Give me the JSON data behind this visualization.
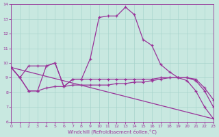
{
  "background_color": "#c8e8e0",
  "grid_color": "#a8d4cc",
  "line_color": "#993399",
  "xlabel": "Windchill (Refroidissement éolien,°C)",
  "xlim": [
    0,
    23
  ],
  "ylim": [
    6,
    14
  ],
  "xticks": [
    0,
    1,
    2,
    3,
    4,
    5,
    6,
    7,
    8,
    9,
    10,
    11,
    12,
    13,
    14,
    15,
    16,
    17,
    18,
    19,
    20,
    21,
    22,
    23
  ],
  "yticks": [
    6,
    7,
    8,
    9,
    10,
    11,
    12,
    13,
    14
  ],
  "series1_x": [
    0,
    1,
    2,
    3,
    4,
    5,
    6,
    7,
    8,
    9,
    10,
    11,
    12,
    13,
    14,
    15,
    16,
    17,
    18,
    19,
    20,
    21,
    22,
    23
  ],
  "series1_y": [
    9.7,
    9.0,
    8.1,
    8.1,
    9.8,
    10.0,
    8.4,
    8.9,
    8.9,
    10.3,
    13.1,
    13.2,
    13.2,
    13.8,
    13.3,
    11.6,
    11.2,
    9.9,
    9.4,
    9.0,
    8.8,
    8.1,
    7.0,
    6.2
  ],
  "series2_x": [
    0,
    1,
    2,
    3,
    4,
    5,
    6,
    7,
    8,
    9,
    10,
    11,
    12,
    13,
    14,
    15,
    16,
    17,
    18,
    19,
    20,
    21,
    22,
    23
  ],
  "series2_y": [
    9.7,
    9.0,
    9.8,
    9.8,
    9.8,
    10.0,
    8.4,
    8.9,
    8.9,
    8.9,
    8.9,
    8.9,
    8.9,
    8.9,
    8.9,
    8.9,
    8.9,
    9.0,
    9.0,
    9.0,
    9.0,
    8.8,
    8.1,
    7.0
  ],
  "series3_x": [
    0,
    1,
    2,
    3,
    4,
    5,
    6,
    7,
    8,
    9,
    10,
    11,
    12,
    13,
    14,
    15,
    16,
    17,
    18,
    19,
    20,
    21,
    22,
    23
  ],
  "series3_y": [
    9.7,
    9.0,
    8.1,
    8.1,
    8.3,
    8.4,
    8.4,
    8.5,
    8.5,
    8.5,
    8.5,
    8.5,
    8.6,
    8.6,
    8.7,
    8.7,
    8.8,
    8.9,
    9.0,
    9.0,
    9.0,
    8.9,
    8.3,
    7.5
  ],
  "series4_x": [
    0,
    23
  ],
  "series4_y": [
    9.7,
    6.2
  ]
}
